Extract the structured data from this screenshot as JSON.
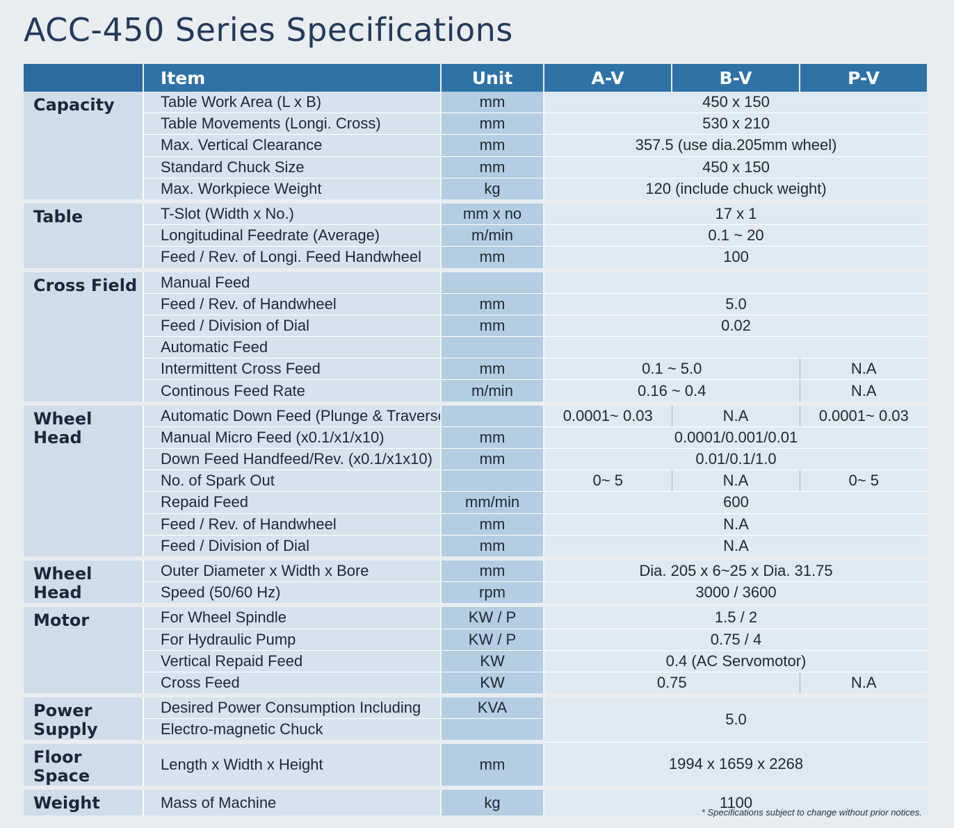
{
  "title": "ACC-450 Series Specifications",
  "header": {
    "category": "",
    "item": "Item",
    "unit": "Unit",
    "models": [
      "A-V",
      "B-V",
      "P-V"
    ]
  },
  "note": "* Specifications subject to change without prior notices.",
  "groups": [
    {
      "category": "Capacity",
      "rows": [
        {
          "item": "Table Work Area (L x B)",
          "unit": "mm",
          "values": [
            "450 x 150"
          ]
        },
        {
          "item": "Table Movements (Longi. Cross)",
          "unit": "mm",
          "values": [
            "530 x 210"
          ]
        },
        {
          "item": "Max. Vertical Clearance",
          "unit": "mm",
          "values": [
            "357.5 (use dia.205mm wheel)"
          ]
        },
        {
          "item": "Standard Chuck Size",
          "unit": "mm",
          "values": [
            "450 x 150"
          ]
        },
        {
          "item": "Max. Workpiece Weight",
          "unit": "kg",
          "values": [
            "120 (include chuck weight)"
          ]
        }
      ]
    },
    {
      "category": "Table",
      "rows": [
        {
          "item": "T-Slot (Width x No.)",
          "unit": "mm x no",
          "values": [
            "17 x 1"
          ]
        },
        {
          "item": "Longitudinal Feedrate (Average)",
          "unit": "m/min",
          "values": [
            "0.1 ~ 20"
          ]
        },
        {
          "item": "Feed / Rev. of Longi. Feed Handwheel",
          "unit": "mm",
          "values": [
            "100"
          ]
        }
      ]
    },
    {
      "category": "Cross Field",
      "rows": [
        {
          "item": "Manual Feed",
          "unit": "",
          "values": [
            ""
          ]
        },
        {
          "item": "Feed / Rev. of Handwheel",
          "unit": "mm",
          "values": [
            "5.0"
          ]
        },
        {
          "item": "Feed / Division of Dial",
          "unit": "mm",
          "values": [
            "0.02"
          ]
        },
        {
          "item": "Automatic Feed",
          "unit": "",
          "values": [
            ""
          ]
        },
        {
          "item": "Intermittent Cross Feed",
          "unit": "mm",
          "values": [
            "0.1 ~ 5.0",
            "N.A"
          ]
        },
        {
          "item": "Continous Feed Rate",
          "unit": "m/min",
          "values": [
            "0.16 ~ 0.4",
            "N.A"
          ]
        }
      ]
    },
    {
      "category": "Wheel Head",
      "rows": [
        {
          "item": "Automatic Down Feed (Plunge & Traverse)",
          "unit": "",
          "values": [
            "0.0001~ 0.03",
            "N.A",
            "0.0001~ 0.03"
          ]
        },
        {
          "item": "Manual Micro Feed (x0.1/x1/x10)",
          "unit": "mm",
          "values": [
            "0.0001/0.001/0.01"
          ]
        },
        {
          "item": "Down Feed Handfeed/Rev. (x0.1/x1x10)",
          "unit": "mm",
          "values": [
            "0.01/0.1/1.0"
          ]
        },
        {
          "item": "No. of Spark Out",
          "unit": "",
          "values": [
            "0~ 5",
            "N.A",
            "0~ 5"
          ]
        },
        {
          "item": "Repaid Feed",
          "unit": "mm/min",
          "values": [
            "600"
          ]
        },
        {
          "item": "Feed / Rev. of Handwheel",
          "unit": "mm",
          "values": [
            "N.A"
          ]
        },
        {
          "item": "Feed / Division of Dial",
          "unit": "mm",
          "values": [
            "N.A"
          ]
        }
      ]
    },
    {
      "category": "Wheel Head",
      "rows": [
        {
          "item": "Outer Diameter x Width x Bore",
          "unit": "mm",
          "values": [
            "Dia. 205 x 6~25 x Dia. 31.75"
          ]
        },
        {
          "item": "Speed (50/60 Hz)",
          "unit": "rpm",
          "values": [
            "3000 / 3600"
          ]
        }
      ]
    },
    {
      "category": "Motor",
      "rows": [
        {
          "item": "For Wheel Spindle",
          "unit": "KW / P",
          "values": [
            "1.5 / 2"
          ]
        },
        {
          "item": "For Hydraulic Pump",
          "unit": "KW / P",
          "values": [
            "0.75 / 4"
          ]
        },
        {
          "item": "Vertical Repaid Feed",
          "unit": "KW",
          "values": [
            "0.4 (AC Servomotor)"
          ]
        },
        {
          "item": "Cross Feed",
          "unit": "KW",
          "values": [
            "0.75",
            "N.A"
          ]
        }
      ]
    },
    {
      "category": "Power Supply",
      "rows": [
        {
          "item": "Desired Power Consumption Including",
          "unit": "KVA",
          "values": [
            "5.0"
          ]
        },
        {
          "item": "Electro-magnetic Chuck",
          "unit": "",
          "values": []
        }
      ]
    },
    {
      "category": "Floor Space",
      "rows": [
        {
          "item": "Length x Width x Height",
          "unit": "mm",
          "values": [
            "1994 x 1659 x 2268"
          ]
        }
      ]
    },
    {
      "category": "Weight",
      "rows": [
        {
          "item": "Mass of Machine",
          "unit": "kg",
          "values": [
            "1100"
          ]
        }
      ]
    }
  ]
}
